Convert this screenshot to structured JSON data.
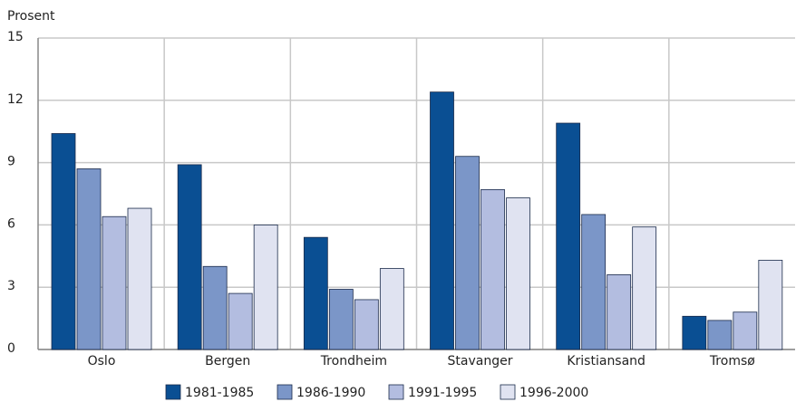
{
  "chart_data": {
    "type": "bar",
    "y_label": "Prosent",
    "categories": [
      "Oslo",
      "Bergen",
      "Trondheim",
      "Stavanger",
      "Kristiansand",
      "Tromsø"
    ],
    "series": [
      {
        "name": "1981-1985",
        "color": "#0a4f93",
        "values": [
          10.4,
          8.9,
          5.4,
          12.4,
          10.9,
          1.6
        ]
      },
      {
        "name": "1986-1990",
        "color": "#7b96c8",
        "values": [
          8.7,
          4.0,
          2.9,
          9.3,
          6.5,
          1.4
        ]
      },
      {
        "name": "1991-1995",
        "color": "#b3bde0",
        "values": [
          6.4,
          2.7,
          2.4,
          7.7,
          3.6,
          1.8
        ]
      },
      {
        "name": "1996-2000",
        "color": "#e0e3f1",
        "values": [
          6.8,
          6.0,
          3.9,
          7.3,
          5.9,
          4.3
        ]
      }
    ],
    "ylim": [
      0,
      15
    ],
    "yticks": [
      0,
      3,
      6,
      9,
      12,
      15
    ],
    "grid": true
  }
}
